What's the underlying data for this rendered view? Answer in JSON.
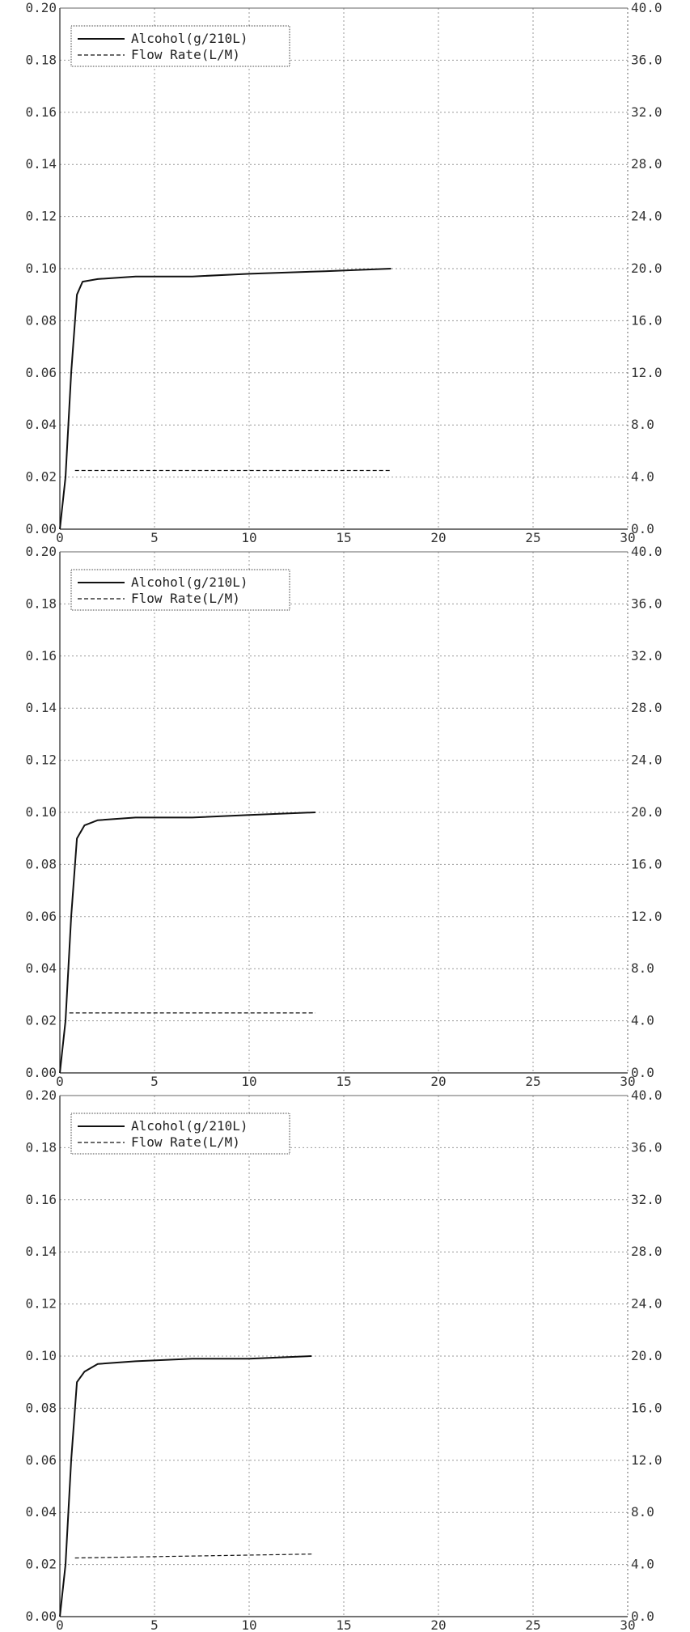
{
  "chart_data": [
    {
      "type": "line",
      "title": "",
      "xlabel": "",
      "ylabel": "",
      "xlim": [
        0,
        30
      ],
      "ylim_left": [
        0,
        0.2
      ],
      "ylim_right": [
        0,
        40
      ],
      "x_ticks": [
        "0",
        "5",
        "10",
        "15",
        "20",
        "25",
        "30"
      ],
      "y_left_ticks": [
        "0.00",
        "0.02",
        "0.04",
        "0.06",
        "0.08",
        "0.10",
        "0.12",
        "0.14",
        "0.16",
        "0.18",
        "0.20"
      ],
      "y_right_ticks": [
        "0.0",
        "4.0",
        "8.0",
        "12.0",
        "16.0",
        "20.0",
        "24.0",
        "28.0",
        "32.0",
        "36.0",
        "40.0"
      ],
      "grid": true,
      "legend_position": "top-left",
      "series": [
        {
          "name": "Alcohol(g/210L)",
          "axis": "left",
          "style": "solid",
          "color": "#111111",
          "x": [
            0,
            0.3,
            0.6,
            0.9,
            1.2,
            2,
            4,
            7,
            10,
            14,
            17.5
          ],
          "y": [
            0,
            0.02,
            0.06,
            0.09,
            0.095,
            0.096,
            0.097,
            0.097,
            0.098,
            0.099,
            0.1
          ]
        },
        {
          "name": "Flow Rate(L/M)",
          "axis": "right",
          "style": "dashed",
          "color": "#111111",
          "x": [
            0.8,
            17.5
          ],
          "y": [
            4.5,
            4.5
          ]
        }
      ]
    },
    {
      "type": "line",
      "title": "",
      "xlabel": "",
      "ylabel": "",
      "xlim": [
        0,
        30
      ],
      "ylim_left": [
        0,
        0.2
      ],
      "ylim_right": [
        0,
        40
      ],
      "x_ticks": [
        "0",
        "5",
        "10",
        "15",
        "20",
        "25",
        "30"
      ],
      "y_left_ticks": [
        "0.00",
        "0.02",
        "0.04",
        "0.06",
        "0.08",
        "0.10",
        "0.12",
        "0.14",
        "0.16",
        "0.18",
        "0.20"
      ],
      "y_right_ticks": [
        "0.0",
        "4.0",
        "8.0",
        "12.0",
        "16.0",
        "20.0",
        "24.0",
        "28.0",
        "32.0",
        "36.0",
        "40.0"
      ],
      "grid": true,
      "legend_position": "top-left",
      "series": [
        {
          "name": "Alcohol(g/210L)",
          "axis": "left",
          "style": "solid",
          "color": "#111111",
          "x": [
            0,
            0.3,
            0.6,
            0.9,
            1.3,
            2,
            4,
            7,
            10,
            13.5
          ],
          "y": [
            0,
            0.02,
            0.06,
            0.09,
            0.095,
            0.097,
            0.098,
            0.098,
            0.099,
            0.1
          ]
        },
        {
          "name": "Flow Rate(L/M)",
          "axis": "right",
          "style": "dashed",
          "color": "#111111",
          "x": [
            0.5,
            13.5
          ],
          "y": [
            4.6,
            4.6
          ]
        }
      ]
    },
    {
      "type": "line",
      "title": "",
      "xlabel": "",
      "ylabel": "",
      "xlim": [
        0,
        30
      ],
      "ylim_left": [
        0,
        0.2
      ],
      "ylim_right": [
        0,
        40
      ],
      "x_ticks": [
        "0",
        "5",
        "10",
        "15",
        "20",
        "25",
        "30"
      ],
      "y_left_ticks": [
        "0.00",
        "0.02",
        "0.04",
        "0.06",
        "0.08",
        "0.10",
        "0.12",
        "0.14",
        "0.16",
        "0.18",
        "0.20"
      ],
      "y_right_ticks": [
        "0.0",
        "4.0",
        "8.0",
        "12.0",
        "16.0",
        "20.0",
        "24.0",
        "28.0",
        "32.0",
        "36.0",
        "40.0"
      ],
      "grid": true,
      "legend_position": "top-left",
      "series": [
        {
          "name": "Alcohol(g/210L)",
          "axis": "left",
          "style": "solid",
          "color": "#111111",
          "x": [
            0,
            0.3,
            0.6,
            0.9,
            1.3,
            2,
            4,
            7,
            10,
            13.3
          ],
          "y": [
            0,
            0.02,
            0.06,
            0.09,
            0.094,
            0.097,
            0.098,
            0.099,
            0.099,
            0.1
          ]
        },
        {
          "name": "Flow Rate(L/M)",
          "axis": "right",
          "style": "dashed",
          "color": "#111111",
          "x": [
            0.8,
            13.3
          ],
          "y": [
            4.5,
            4.8
          ]
        }
      ]
    }
  ]
}
